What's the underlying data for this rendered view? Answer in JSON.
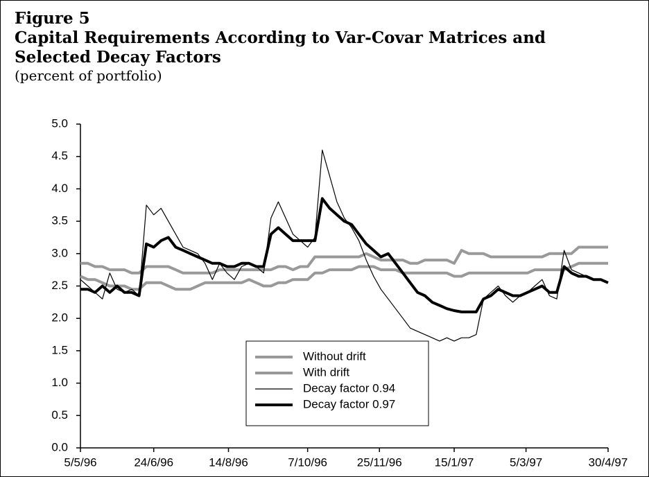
{
  "chart_data": {
    "type": "line",
    "figure_label": "Figure 5",
    "title": "Capital Requirements According to Var-Covar Matrices and Selected Decay Factors",
    "subtitle": "(percent of portfolio)",
    "x": [
      0,
      5,
      10,
      15,
      20,
      25,
      30,
      35,
      40,
      45,
      50,
      55,
      60,
      65,
      70,
      75,
      80,
      85,
      90,
      95,
      100,
      105,
      110,
      115,
      120,
      125,
      130,
      135,
      140,
      145,
      150,
      155,
      160,
      165,
      170,
      175,
      180,
      185,
      190,
      195,
      200,
      205,
      210,
      215,
      220,
      225,
      230,
      235,
      240,
      245,
      250,
      255,
      260,
      265,
      270,
      275,
      280,
      285,
      290,
      295,
      300,
      305,
      310,
      315,
      320,
      325,
      330,
      335,
      340,
      345,
      350,
      355,
      360
    ],
    "xlim": [
      0,
      360
    ],
    "xticks": [
      {
        "value": 0,
        "label": "5/5/96"
      },
      {
        "value": 50,
        "label": "24/6/96"
      },
      {
        "value": 101,
        "label": "14/8/96"
      },
      {
        "value": 155,
        "label": "7/10/96"
      },
      {
        "value": 204,
        "label": "25/11/96"
      },
      {
        "value": 255,
        "label": "15/1/97"
      },
      {
        "value": 304,
        "label": "5/3/97"
      },
      {
        "value": 360,
        "label": "30/4/97"
      }
    ],
    "ylim": [
      0,
      5
    ],
    "yticks": [
      {
        "value": 0,
        "label": "0.0"
      },
      {
        "value": 0.5,
        "label": "0.5"
      },
      {
        "value": 1,
        "label": "1.0"
      },
      {
        "value": 1.5,
        "label": "1.5"
      },
      {
        "value": 2,
        "label": "2.0"
      },
      {
        "value": 2.5,
        "label": "2.5"
      },
      {
        "value": 3,
        "label": "3.0"
      },
      {
        "value": 3.5,
        "label": "3.5"
      },
      {
        "value": 4,
        "label": "4.0"
      },
      {
        "value": 4.5,
        "label": "4.5"
      },
      {
        "value": 5,
        "label": "5.0"
      }
    ],
    "grid": false,
    "legend": "lower center",
    "series": [
      {
        "name": "Without drift",
        "color": "#999999",
        "line_width": 4,
        "values": [
          2.85,
          2.85,
          2.8,
          2.8,
          2.75,
          2.75,
          2.75,
          2.7,
          2.7,
          2.8,
          2.8,
          2.8,
          2.8,
          2.75,
          2.7,
          2.7,
          2.7,
          2.7,
          2.7,
          2.75,
          2.75,
          2.75,
          2.75,
          2.75,
          2.75,
          2.75,
          2.75,
          2.8,
          2.8,
          2.75,
          2.8,
          2.8,
          2.95,
          2.95,
          2.95,
          2.95,
          2.95,
          2.95,
          2.95,
          3.0,
          2.95,
          2.9,
          2.9,
          2.9,
          2.9,
          2.85,
          2.85,
          2.9,
          2.9,
          2.9,
          2.9,
          2.85,
          3.05,
          3.0,
          3.0,
          3.0,
          2.95,
          2.95,
          2.95,
          2.95,
          2.95,
          2.95,
          2.95,
          2.95,
          3.0,
          3.0,
          3.0,
          3.0,
          3.1,
          3.1,
          3.1,
          3.1,
          3.1
        ]
      },
      {
        "name": "With drift",
        "color": "#999999",
        "line_width": 4,
        "values": [
          2.65,
          2.6,
          2.6,
          2.55,
          2.5,
          2.5,
          2.5,
          2.45,
          2.45,
          2.55,
          2.55,
          2.55,
          2.5,
          2.45,
          2.45,
          2.45,
          2.5,
          2.55,
          2.55,
          2.55,
          2.55,
          2.55,
          2.55,
          2.6,
          2.55,
          2.5,
          2.5,
          2.55,
          2.55,
          2.6,
          2.6,
          2.6,
          2.7,
          2.7,
          2.75,
          2.75,
          2.75,
          2.75,
          2.8,
          2.8,
          2.8,
          2.75,
          2.75,
          2.75,
          2.7,
          2.7,
          2.7,
          2.7,
          2.7,
          2.7,
          2.7,
          2.65,
          2.65,
          2.7,
          2.7,
          2.7,
          2.7,
          2.7,
          2.7,
          2.7,
          2.7,
          2.7,
          2.75,
          2.75,
          2.75,
          2.75,
          2.75,
          2.8,
          2.85,
          2.85,
          2.85,
          2.85,
          2.85
        ]
      },
      {
        "name": "Decay factor 0.94",
        "color": "#000000",
        "line_width": 1.2,
        "values": [
          2.6,
          2.5,
          2.4,
          2.3,
          2.7,
          2.45,
          2.4,
          2.45,
          2.35,
          3.75,
          3.6,
          3.7,
          3.5,
          3.3,
          3.1,
          3.05,
          3.0,
          2.85,
          2.6,
          2.85,
          2.7,
          2.6,
          2.8,
          2.85,
          2.8,
          2.7,
          3.55,
          3.8,
          3.55,
          3.3,
          3.2,
          3.1,
          3.25,
          4.6,
          4.2,
          3.8,
          3.55,
          3.4,
          3.2,
          2.9,
          2.65,
          2.45,
          2.3,
          2.15,
          2.0,
          1.85,
          1.8,
          1.75,
          1.7,
          1.65,
          1.7,
          1.65,
          1.7,
          1.7,
          1.75,
          2.3,
          2.4,
          2.5,
          2.35,
          2.25,
          2.35,
          2.4,
          2.5,
          2.6,
          2.35,
          2.3,
          3.05,
          2.75,
          2.7,
          2.65,
          2.6,
          2.6,
          2.55
        ]
      },
      {
        "name": "Decay factor 0.97",
        "color": "#000000",
        "line_width": 4,
        "values": [
          2.45,
          2.45,
          2.4,
          2.5,
          2.4,
          2.5,
          2.4,
          2.4,
          2.35,
          3.15,
          3.1,
          3.2,
          3.25,
          3.1,
          3.05,
          3.0,
          2.95,
          2.9,
          2.85,
          2.85,
          2.8,
          2.8,
          2.85,
          2.85,
          2.8,
          2.8,
          3.3,
          3.4,
          3.3,
          3.2,
          3.2,
          3.2,
          3.2,
          3.85,
          3.7,
          3.6,
          3.5,
          3.45,
          3.3,
          3.15,
          3.05,
          2.95,
          3.0,
          2.85,
          2.7,
          2.55,
          2.4,
          2.35,
          2.25,
          2.2,
          2.15,
          2.12,
          2.1,
          2.1,
          2.1,
          2.3,
          2.35,
          2.45,
          2.4,
          2.35,
          2.35,
          2.4,
          2.45,
          2.5,
          2.4,
          2.4,
          2.8,
          2.7,
          2.65,
          2.65,
          2.6,
          2.6,
          2.55
        ]
      }
    ]
  }
}
